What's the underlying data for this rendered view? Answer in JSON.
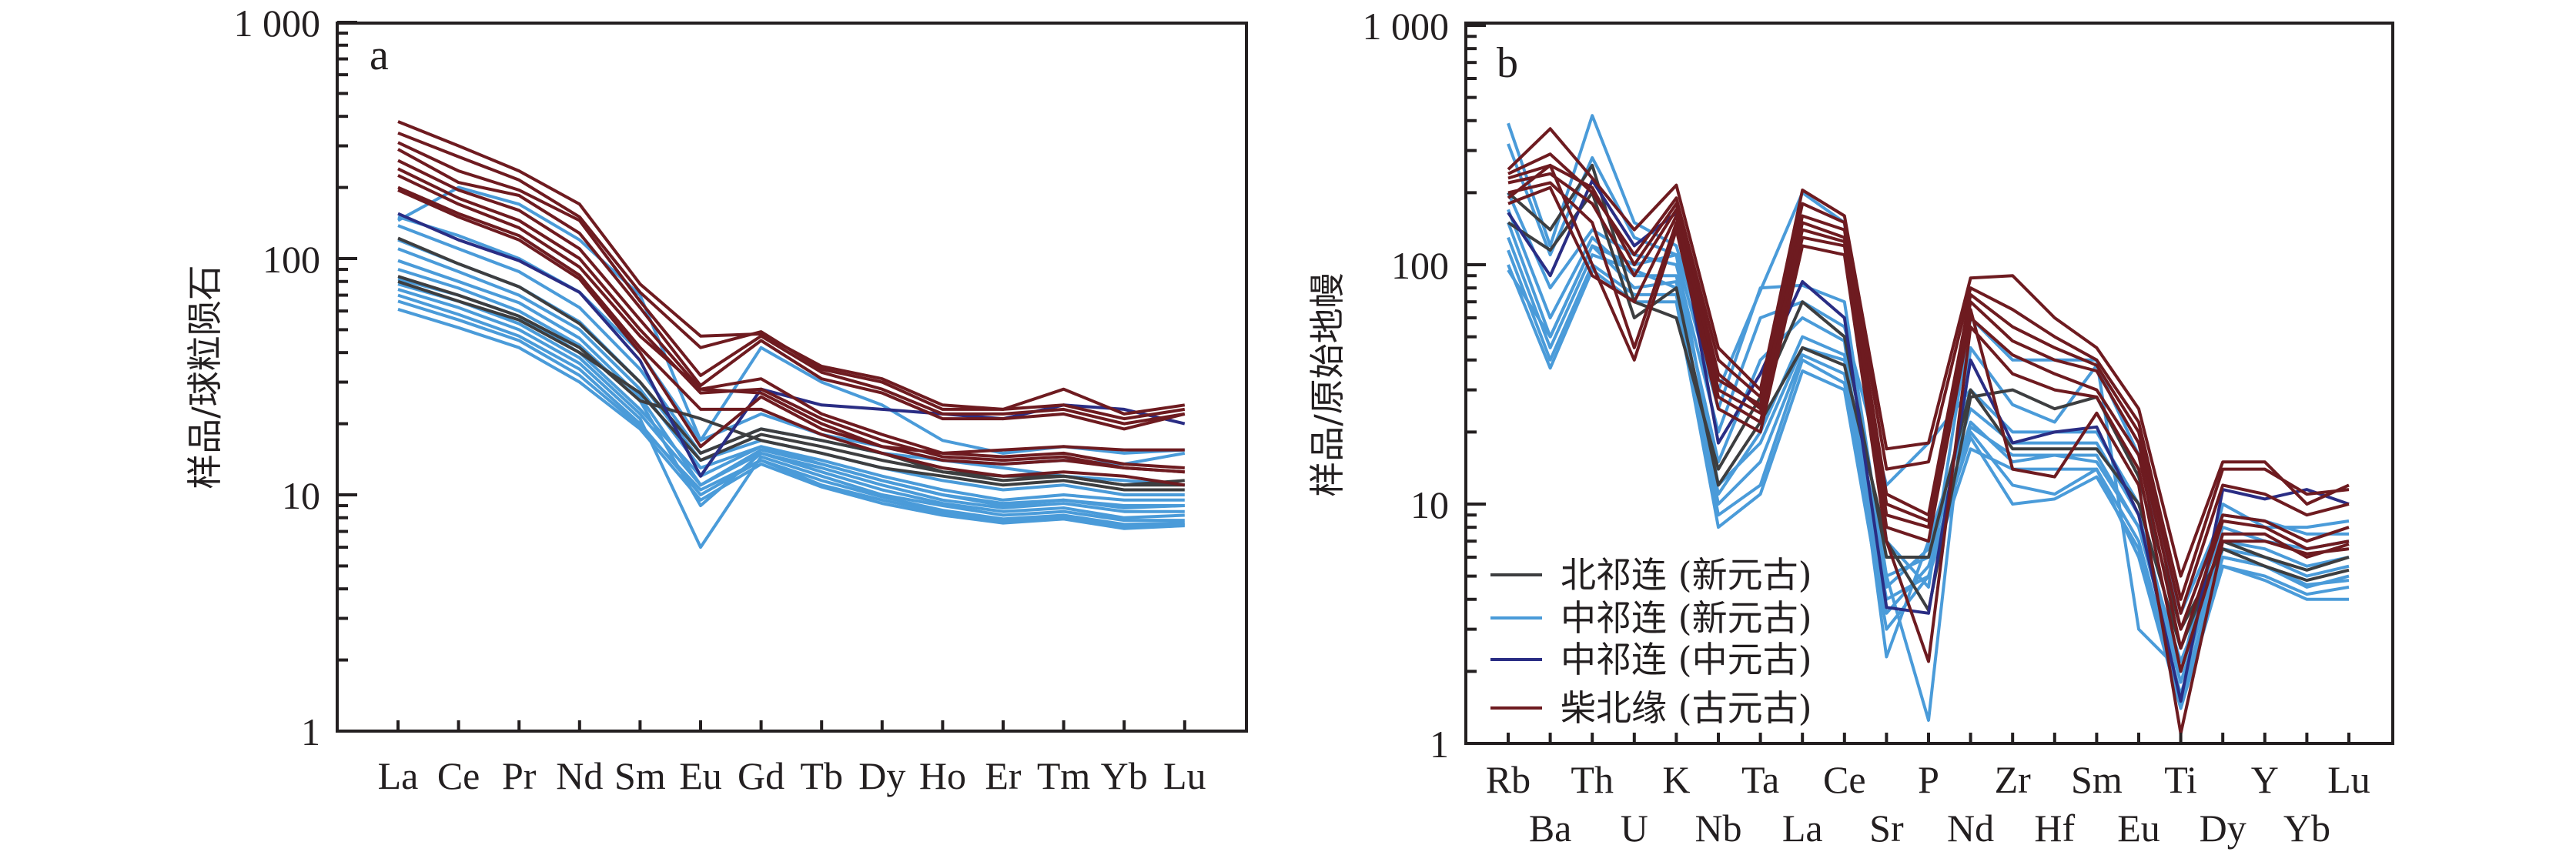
{
  "colors": {
    "north_qilian_neo": "#3d3e40",
    "central_qilian_neo": "#4a9bd9",
    "central_qilian_meso": "#2a2d84",
    "north_qaidam_paleo": "#6e1b20",
    "axis": "#231f20"
  },
  "legend": [
    {
      "key": "north_qilian_neo",
      "label": "北祁连 (新元古)"
    },
    {
      "key": "central_qilian_neo",
      "label": "中祁连 (新元古)"
    },
    {
      "key": "central_qilian_meso",
      "label": "中祁连 (中元古)"
    },
    {
      "key": "north_qaidam_paleo",
      "label": "柴北缘 (古元古)"
    }
  ],
  "chart_data": [
    {
      "type": "line",
      "panel_label": "a",
      "title": "",
      "xlabel": "",
      "ylabel": "样品/球粒陨石",
      "yscale": "log",
      "ylim": [
        1,
        1000
      ],
      "yticks": [
        1,
        10,
        100,
        1000
      ],
      "ytick_labels": [
        "1",
        "10",
        "100",
        "1 000"
      ],
      "categories": [
        "La",
        "Ce",
        "Pr",
        "Nd",
        "Sm",
        "Eu",
        "Gd",
        "Tb",
        "Dy",
        "Ho",
        "Er",
        "Tm",
        "Yb",
        "Lu"
      ],
      "legend_position": "none",
      "series": [
        {
          "group": "north_qaidam_paleo",
          "values": [
            380,
            300,
            235,
            170,
            78,
            47,
            48,
            35,
            31,
            24,
            23,
            28,
            22,
            24
          ]
        },
        {
          "group": "north_qaidam_paleo",
          "values": [
            340,
            270,
            215,
            150,
            72,
            42,
            49,
            34,
            30,
            23,
            23,
            24,
            21,
            23
          ]
        },
        {
          "group": "north_qaidam_paleo",
          "values": [
            310,
            235,
            195,
            145,
            66,
            32,
            47,
            33,
            28,
            22,
            22,
            23,
            20,
            22
          ]
        },
        {
          "group": "north_qaidam_paleo",
          "values": [
            290,
            210,
            185,
            128,
            62,
            29,
            45,
            31,
            27,
            21,
            21,
            22,
            19,
            22
          ]
        },
        {
          "group": "north_qaidam_paleo",
          "values": [
            260,
            195,
            160,
            110,
            55,
            28,
            31,
            22,
            18,
            15,
            14.5,
            15,
            13.5,
            13
          ]
        },
        {
          "group": "north_qaidam_paleo",
          "values": [
            240,
            180,
            145,
            100,
            50,
            27,
            28,
            21,
            17,
            14.5,
            14,
            14.5,
            13,
            12.5
          ]
        },
        {
          "group": "north_qaidam_paleo",
          "values": [
            225,
            170,
            135,
            92,
            47,
            28,
            27,
            20,
            16,
            14,
            13.5,
            14,
            13,
            12.5
          ]
        },
        {
          "group": "north_qaidam_paleo",
          "values": [
            200,
            155,
            125,
            85,
            42,
            23,
            23,
            18,
            15,
            13,
            12,
            12.5,
            12,
            11
          ]
        },
        {
          "group": "north_qaidam_paleo",
          "values": [
            195,
            150,
            120,
            82,
            40,
            16,
            26,
            19,
            16,
            15,
            15.5,
            16,
            15.5,
            15.5
          ]
        },
        {
          "group": "central_qilian_meso",
          "values": [
            155,
            120,
            98,
            72,
            37,
            12,
            28,
            24,
            23,
            22,
            21,
            24,
            23,
            20
          ]
        },
        {
          "group": "north_qilian_neo",
          "values": [
            122,
            95,
            76,
            53,
            30,
            15,
            19,
            17,
            15,
            12.5,
            12,
            12,
            11,
            11.5
          ]
        },
        {
          "group": "north_qilian_neo",
          "values": [
            84,
            70,
            57,
            42,
            25,
            21,
            17,
            15,
            13,
            12,
            11,
            11.5,
            10.5,
            10.5
          ]
        },
        {
          "group": "north_qilian_neo",
          "values": [
            80,
            66,
            55,
            40,
            27,
            14,
            18,
            16,
            14,
            12.5,
            11.5,
            12,
            11,
            11
          ]
        },
        {
          "group": "central_qilian_neo",
          "values": [
            150,
            125,
            100,
            72,
            40,
            17,
            42,
            30,
            24,
            17,
            15,
            16,
            15,
            15.5
          ]
        },
        {
          "group": "central_qilian_neo",
          "values": [
            145,
            200,
            170,
            120,
            70,
            17,
            22,
            18,
            16,
            14,
            13,
            12,
            11.5,
            11
          ]
        },
        {
          "group": "central_qilian_neo",
          "values": [
            138,
            110,
            88,
            62,
            34,
            15,
            19,
            17,
            15,
            14,
            13.5,
            14,
            13.5,
            15
          ]
        },
        {
          "group": "central_qilian_neo",
          "values": [
            120,
            95,
            76,
            54,
            30,
            14,
            17,
            15,
            13,
            11.5,
            10.5,
            11,
            10,
            10
          ]
        },
        {
          "group": "central_qilian_neo",
          "values": [
            110,
            88,
            70,
            50,
            28,
            13,
            16,
            14,
            12,
            10.5,
            9.5,
            10,
            9.5,
            9.5
          ]
        },
        {
          "group": "central_qilian_neo",
          "values": [
            98,
            80,
            65,
            46,
            26,
            11,
            15.5,
            13.5,
            11.5,
            10,
            9,
            9.5,
            9,
            9
          ]
        },
        {
          "group": "central_qilian_neo",
          "values": [
            90,
            75,
            60,
            43,
            25,
            9,
            15,
            13,
            11,
            9.5,
            8.8,
            9.2,
            8.5,
            8.5
          ]
        },
        {
          "group": "central_qilian_neo",
          "values": [
            82,
            70,
            57,
            40,
            23,
            12,
            16,
            13.5,
            11.5,
            10,
            9.2,
            9.5,
            8.8,
            9
          ]
        },
        {
          "group": "central_qilian_neo",
          "values": [
            78,
            66,
            53,
            38,
            22,
            11,
            15,
            12.5,
            10.5,
            9.2,
            8.5,
            8.8,
            8,
            8.2
          ]
        },
        {
          "group": "central_qilian_neo",
          "values": [
            74,
            62,
            50,
            36,
            21,
            6,
            14.5,
            12,
            10,
            9,
            8.2,
            8.5,
            7.8,
            7.8
          ]
        },
        {
          "group": "central_qilian_neo",
          "values": [
            70,
            58,
            47,
            34,
            20,
            10,
            14,
            11.5,
            9.8,
            8.6,
            7.9,
            8.2,
            7.5,
            7.6
          ]
        },
        {
          "group": "central_qilian_neo",
          "values": [
            66,
            55,
            45,
            32,
            19.5,
            10.5,
            14,
            11,
            9.5,
            8.4,
            7.8,
            8,
            7.3,
            7.5
          ]
        },
        {
          "group": "central_qilian_neo",
          "values": [
            61,
            51,
            42,
            30,
            19,
            9.5,
            13.5,
            10.8,
            9.2,
            8.2,
            7.6,
            7.9,
            7.2,
            7.4
          ]
        }
      ]
    },
    {
      "type": "line",
      "panel_label": "b",
      "title": "",
      "xlabel": "",
      "ylabel": "样品/原始地幔",
      "yscale": "log",
      "ylim": [
        1,
        1000
      ],
      "yticks": [
        1,
        10,
        100,
        1000
      ],
      "ytick_labels": [
        "1",
        "10",
        "100",
        "1 000"
      ],
      "categories": [
        "Rb",
        "Ba",
        "Th",
        "U",
        "K",
        "Nb",
        "Ta",
        "La",
        "Ce",
        "Sr",
        "P",
        "Nd",
        "Zr",
        "Hf",
        "Sm",
        "Eu",
        "Ti",
        "Dy",
        "Y",
        "Yb",
        "Lu"
      ],
      "category_rows": {
        "top": [
          "Rb",
          "Th",
          "K",
          "Ta",
          "Ce",
          "P",
          "Zr",
          "Sm",
          "Ti",
          "Y",
          "Lu"
        ],
        "bottom": [
          "Ba",
          "U",
          "Nb",
          "La",
          "Sr",
          "Nd",
          "Hf",
          "Eu",
          "Dy",
          "Yb"
        ]
      },
      "legend_position": "bottom-left",
      "series": [
        {
          "group": "north_qaidam_paleo",
          "values": [
            250,
            370,
            230,
            140,
            215,
            45,
            30,
            205,
            160,
            17,
            18,
            88,
            90,
            60,
            45,
            25,
            5,
            15,
            15,
            10,
            12
          ]
        },
        {
          "group": "north_qaidam_paleo",
          "values": [
            240,
            290,
            200,
            110,
            190,
            40,
            28,
            180,
            150,
            14,
            15,
            80,
            65,
            50,
            40,
            22,
            4,
            14,
            14,
            11,
            11.5
          ]
        },
        {
          "group": "north_qaidam_paleo",
          "values": [
            230,
            260,
            210,
            100,
            180,
            35,
            25,
            160,
            140,
            11,
            9,
            75,
            55,
            45,
            38,
            20,
            3.5,
            12,
            11,
            9,
            10
          ]
        },
        {
          "group": "north_qaidam_paleo",
          "values": [
            220,
            240,
            180,
            90,
            170,
            30,
            24,
            150,
            130,
            9,
            8,
            70,
            48,
            40,
            36,
            18,
            3,
            9,
            8.5,
            7,
            8
          ]
        },
        {
          "group": "north_qaidam_paleo",
          "values": [
            200,
            220,
            150,
            45,
            150,
            28,
            22,
            130,
            120,
            8,
            7,
            60,
            42,
            35,
            30,
            16,
            2.5,
            8.5,
            8,
            6.5,
            7
          ]
        },
        {
          "group": "north_qaidam_paleo",
          "values": [
            190,
            260,
            100,
            40,
            140,
            25,
            20,
            120,
            110,
            7,
            2.2,
            55,
            35,
            30,
            28,
            14,
            2,
            7.5,
            7.5,
            6,
            6.8
          ]
        },
        {
          "group": "north_qaidam_paleo",
          "values": [
            180,
            210,
            90,
            70,
            160,
            33,
            26,
            140,
            125,
            10,
            8.5,
            65,
            14,
            13,
            24,
            12,
            1.1,
            7,
            7,
            6.2,
            6.5
          ]
        },
        {
          "group": "central_qilian_meso",
          "values": [
            165,
            90,
            225,
            120,
            165,
            18,
            35,
            85,
            60,
            3.7,
            3.5,
            40,
            18,
            20,
            21,
            9,
            1.5,
            11.5,
            10.5,
            11.5,
            10
          ]
        },
        {
          "group": "north_qilian_neo",
          "values": [
            200,
            140,
            260,
            70,
            60,
            14,
            28,
            70,
            50,
            6,
            6,
            30,
            17,
            17,
            17,
            10,
            2.5,
            7,
            6,
            5.3,
            6
          ]
        },
        {
          "group": "north_qilian_neo",
          "values": [
            150,
            115,
            200,
            60,
            80,
            12,
            22,
            45,
            38,
            7,
            3.6,
            28,
            30,
            25,
            28,
            13,
            3,
            6.5,
            5.5,
            4.8,
            5.3
          ]
        },
        {
          "group": "central_qilian_neo",
          "values": [
            390,
            120,
            420,
            150,
            120,
            30,
            78,
            200,
            150,
            7,
            4.5,
            60,
            40,
            40,
            40,
            3,
            2,
            10,
            8,
            8,
            8.5
          ]
        },
        {
          "group": "central_qilian_neo",
          "values": [
            320,
            110,
            280,
            130,
            110,
            25,
            80,
            82,
            70,
            5,
            1.25,
            45,
            26,
            22,
            38,
            16,
            3.5,
            9,
            8.5,
            7.5,
            7.5
          ]
        },
        {
          "group": "central_qilian_neo",
          "values": [
            200,
            80,
            140,
            110,
            100,
            20,
            60,
            70,
            55,
            12,
            18,
            30,
            20,
            20,
            20,
            10,
            2.5,
            8,
            7,
            6.5,
            7
          ]
        },
        {
          "group": "central_qilian_neo",
          "values": [
            170,
            60,
            130,
            90,
            90,
            15,
            40,
            60,
            48,
            2.3,
            7,
            25,
            18,
            18,
            18,
            9,
            2,
            7,
            6.5,
            5.5,
            6
          ]
        },
        {
          "group": "central_qilian_neo",
          "values": [
            150,
            50,
            120,
            80,
            85,
            11,
            20,
            50,
            42,
            5,
            6,
            22,
            15,
            16,
            15,
            8,
            1.8,
            6.5,
            6,
            5,
            5.5
          ]
        },
        {
          "group": "central_qilian_neo",
          "values": [
            130,
            45,
            110,
            95,
            80,
            10,
            15,
            42,
            35,
            4,
            5,
            20,
            12,
            11,
            14,
            7,
            1.6,
            6,
            5.5,
            4.5,
            5
          ]
        },
        {
          "group": "central_qilian_neo",
          "values": [
            115,
            40,
            100,
            75,
            75,
            9,
            12,
            40,
            32,
            3.5,
            5.5,
            19,
            10,
            10.5,
            13,
            6.5,
            1.5,
            5.5,
            5,
            4.2,
            4.5
          ]
        },
        {
          "group": "central_qilian_neo",
          "values": [
            100,
            37,
            95,
            70,
            70,
            8,
            11,
            36,
            30,
            3,
            5,
            17,
            14,
            14,
            14,
            6,
            1.4,
            5.5,
            4.8,
            4,
            4
          ]
        },
        {
          "group": "central_qilian_neo",
          "values": [
            95,
            50,
            120,
            100,
            110,
            12,
            18,
            45,
            40,
            4.5,
            6.5,
            21,
            16,
            16,
            16,
            8,
            2.2,
            6,
            5.5,
            4.6,
            4.8
          ]
        }
      ]
    }
  ]
}
